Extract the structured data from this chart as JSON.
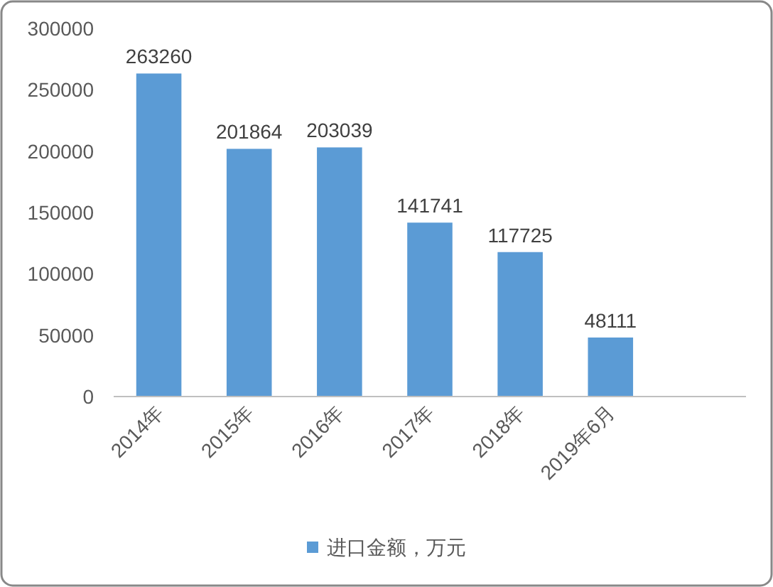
{
  "chart_data": {
    "type": "bar",
    "categories": [
      "2014年",
      "2015年",
      "2016年",
      "2017年",
      "2018年",
      "2019年6月",
      null
    ],
    "series": [
      {
        "name": "进口金额，万元",
        "color": "#5b9bd5",
        "values": [
          263260,
          201864,
          203039,
          141741,
          117725,
          48111,
          null
        ]
      }
    ],
    "ylim": [
      0,
      300000
    ],
    "yticks": [
      0,
      50000,
      100000,
      150000,
      200000,
      250000,
      300000
    ],
    "data_labels": true,
    "legend": "bottom",
    "grid": false
  }
}
